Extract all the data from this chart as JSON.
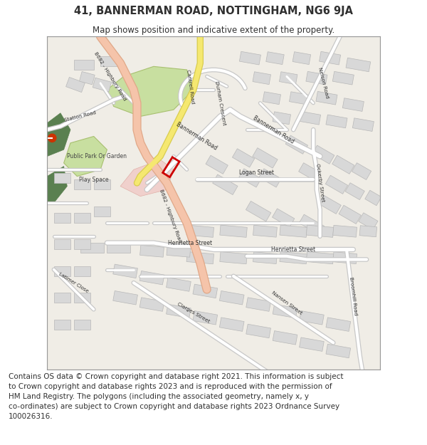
{
  "title": "41, BANNERMAN ROAD, NOTTINGHAM, NG6 9JA",
  "subtitle": "Map shows position and indicative extent of the property.",
  "title_fontsize": 10.5,
  "subtitle_fontsize": 8.5,
  "footer_text": "Contains OS data © Crown copyright and database right 2021. This information is subject\nto Crown copyright and database rights 2023 and is reproduced with the permission of\nHM Land Registry. The polygons (including the associated geometry, namely x, y\nco-ordinates) are subject to Crown copyright and database rights 2023 Ordnance Survey\n100026316.",
  "footer_fontsize": 7.5,
  "map_bg": "#f0ede6",
  "road_color": "#ffffff",
  "road_outline": "#c8c8c8",
  "main_road_color": "#f5c4aa",
  "main_road_outline": "#e0a888",
  "yellow_road_color": "#f5e870",
  "yellow_road_outline": "#d8cc50",
  "building_color": "#d8d8d8",
  "building_outline": "#b8b8b8",
  "green_area_color": "#c8dfa0",
  "green_area_outline": "#a8c070",
  "pink_area_color": "#f0d0cc",
  "pink_area_outline": "#e0b0a8",
  "dark_green_color": "#5a8050",
  "plot_marker_color": "#cc0000",
  "text_color": "#303030",
  "map_border_color": "#999999",
  "figsize": [
    6.0,
    6.25
  ],
  "dpi": 100
}
